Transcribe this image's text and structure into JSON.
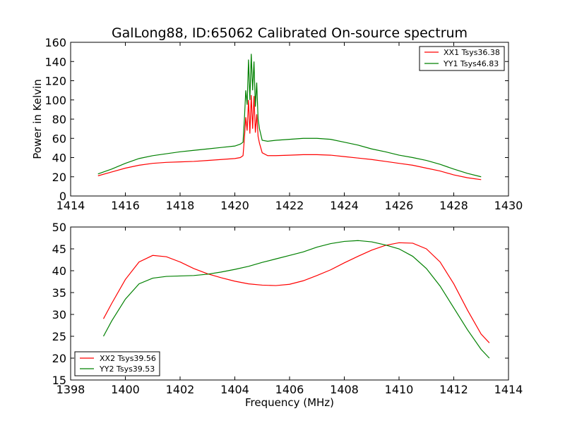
{
  "chart_data": [
    {
      "type": "line",
      "title": "GalLong88, ID:65062 Calibrated On-source spectrum",
      "xlabel": "",
      "ylabel": "Power in Kelvin",
      "xlim": [
        1414,
        1430
      ],
      "ylim": [
        0,
        160
      ],
      "xticks": [
        1414,
        1416,
        1418,
        1420,
        1422,
        1424,
        1426,
        1428,
        1430
      ],
      "yticks": [
        0,
        20,
        40,
        60,
        80,
        100,
        120,
        140,
        160
      ],
      "grid": false,
      "legend_position": "top-right",
      "series": [
        {
          "name": "XX1 Tsys36.38",
          "color": "#ff0000",
          "x": [
            1415.0,
            1415.5,
            1416.0,
            1416.5,
            1417.0,
            1417.5,
            1418.0,
            1418.5,
            1419.0,
            1419.5,
            1420.0,
            1420.2,
            1420.3,
            1420.35,
            1420.4,
            1420.45,
            1420.5,
            1420.55,
            1420.6,
            1420.65,
            1420.7,
            1420.75,
            1420.8,
            1420.85,
            1420.9,
            1421.0,
            1421.2,
            1421.5,
            1422.0,
            1422.5,
            1423.0,
            1423.5,
            1424.0,
            1424.5,
            1425.0,
            1425.5,
            1426.0,
            1426.5,
            1427.0,
            1427.5,
            1428.0,
            1428.5,
            1429.0
          ],
          "values": [
            21,
            25,
            29,
            32,
            34,
            35,
            35.5,
            36,
            37,
            38,
            39,
            40,
            42,
            60,
            82,
            68,
            100,
            65,
            105,
            70,
            104,
            66,
            85,
            62,
            55,
            45,
            42,
            42,
            42.5,
            43,
            43,
            42.5,
            41,
            39.5,
            38,
            36,
            34,
            32,
            29,
            26,
            22,
            19,
            17
          ]
        },
        {
          "name": "YY1 Tsys46.83",
          "color": "#008000",
          "x": [
            1415.0,
            1415.5,
            1416.0,
            1416.5,
            1417.0,
            1417.5,
            1418.0,
            1418.5,
            1419.0,
            1419.5,
            1420.0,
            1420.2,
            1420.3,
            1420.35,
            1420.4,
            1420.45,
            1420.5,
            1420.55,
            1420.6,
            1420.65,
            1420.7,
            1420.75,
            1420.8,
            1420.85,
            1420.9,
            1421.0,
            1421.2,
            1421.5,
            1422.0,
            1422.5,
            1423.0,
            1423.5,
            1424.0,
            1424.5,
            1425.0,
            1425.5,
            1426.0,
            1426.5,
            1427.0,
            1427.5,
            1428.0,
            1428.5,
            1429.0
          ],
          "values": [
            23,
            28,
            34,
            39,
            42,
            44,
            46,
            47.5,
            49,
            50.5,
            52,
            54,
            56,
            80,
            110,
            95,
            142,
            100,
            148,
            110,
            140,
            93,
            118,
            80,
            70,
            58,
            57,
            58,
            59,
            60,
            60,
            59,
            56,
            53,
            49,
            46,
            42.5,
            40,
            37,
            33,
            28,
            23.5,
            20
          ]
        }
      ]
    },
    {
      "type": "line",
      "title": "",
      "xlabel": "Frequency (MHz)",
      "ylabel": "",
      "xlim": [
        1398,
        1414
      ],
      "ylim": [
        15,
        50
      ],
      "xticks": [
        1398,
        1400,
        1402,
        1404,
        1406,
        1408,
        1410,
        1412,
        1414
      ],
      "yticks": [
        15,
        20,
        25,
        30,
        35,
        40,
        45,
        50
      ],
      "grid": false,
      "legend_position": "bottom-left",
      "series": [
        {
          "name": "XX2 Tsys39.56",
          "color": "#ff0000",
          "x": [
            1399.2,
            1399.5,
            1400.0,
            1400.5,
            1401.0,
            1401.5,
            1402.0,
            1402.5,
            1403.0,
            1403.5,
            1404.0,
            1404.5,
            1405.0,
            1405.5,
            1406.0,
            1406.5,
            1407.0,
            1407.5,
            1408.0,
            1408.5,
            1409.0,
            1409.5,
            1410.0,
            1410.5,
            1411.0,
            1411.5,
            1412.0,
            1412.5,
            1413.0,
            1413.3
          ],
          "values": [
            29,
            32.5,
            38,
            42,
            43.5,
            43.2,
            42,
            40.5,
            39.3,
            38.4,
            37.6,
            37,
            36.7,
            36.6,
            36.9,
            37.7,
            38.9,
            40.2,
            41.8,
            43.3,
            44.7,
            45.8,
            46.4,
            46.3,
            45,
            42,
            37,
            31,
            25.5,
            23.5
          ]
        },
        {
          "name": "YY2 Tsys39.53",
          "color": "#008000",
          "x": [
            1399.2,
            1399.5,
            1400.0,
            1400.5,
            1401.0,
            1401.5,
            1402.0,
            1402.5,
            1403.0,
            1403.5,
            1404.0,
            1404.5,
            1405.0,
            1405.5,
            1406.0,
            1406.5,
            1407.0,
            1407.5,
            1408.0,
            1408.5,
            1409.0,
            1409.5,
            1410.0,
            1410.5,
            1411.0,
            1411.5,
            1412.0,
            1412.5,
            1413.0,
            1413.3
          ],
          "values": [
            25,
            28.5,
            33.5,
            37,
            38.3,
            38.7,
            38.8,
            38.9,
            39.2,
            39.7,
            40.3,
            41,
            41.9,
            42.7,
            43.5,
            44.3,
            45.4,
            46.2,
            46.7,
            46.9,
            46.6,
            45.9,
            45,
            43.3,
            40.5,
            36.5,
            31.5,
            26.5,
            22,
            20
          ]
        }
      ]
    }
  ]
}
